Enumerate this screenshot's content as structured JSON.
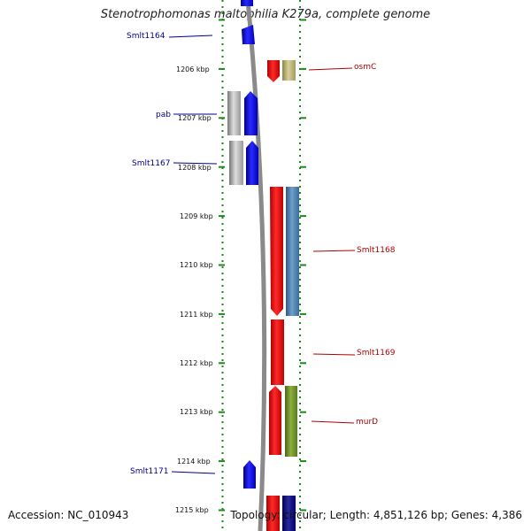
{
  "title": "Stenotrophomonas maltophilia K279a, complete genome",
  "footer": {
    "accession": "Accession: NC_010943",
    "stats": "Topology: circular; Length: 4,851,126 bp; Genes: 4,386"
  },
  "ruler": {
    "unit": "kbp",
    "ticks": [
      "1206 kbp",
      "1207 kbp",
      "1208 kbp",
      "1209 kbp",
      "1210 kbp",
      "1211 kbp",
      "1212 kbp",
      "1213 kbp",
      "1214 kbp",
      "1215 kbp"
    ]
  },
  "gene_labels": {
    "left": [
      "Smlt1164",
      "pab",
      "Smlt1167",
      "Smlt1171"
    ],
    "right": [
      "osmC",
      "Smlt1168",
      "Smlt1169",
      "murD"
    ]
  },
  "colors": {
    "ruler_dots": "#1a8a1a",
    "backbone": "#888888",
    "forward_strand": "#0000ff",
    "reverse_strand": "#ff0000",
    "pseudo": "#aaaaaa",
    "khaki": "#b8b070",
    "steelblue": "#4a7fb0",
    "olive": "#6b8e23",
    "navy": "#00008b"
  }
}
